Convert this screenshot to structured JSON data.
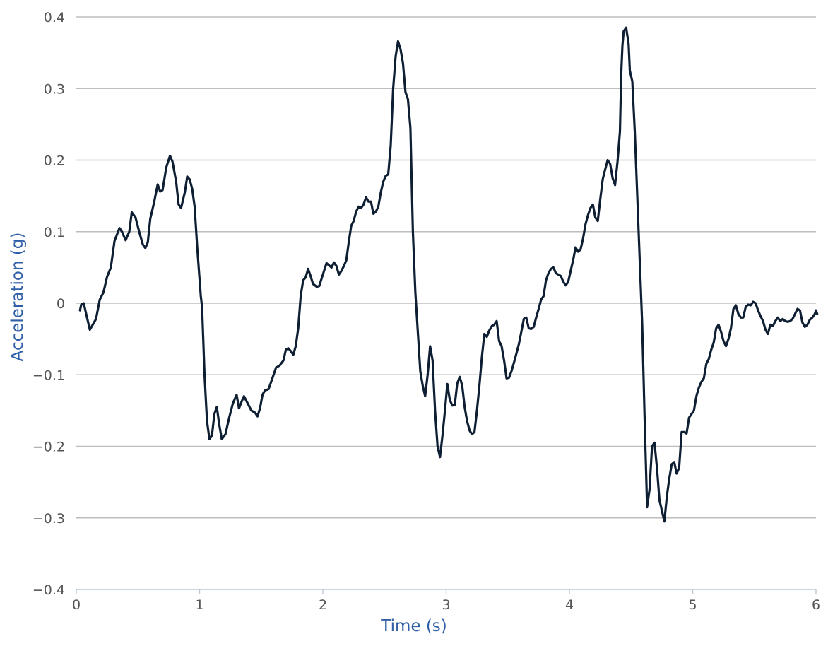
{
  "chart_data": {
    "type": "line",
    "title": "",
    "xlabel": "Time (s)",
    "ylabel": "Acceleration (g)",
    "xlim": [
      0,
      6
    ],
    "ylim": [
      -0.4,
      0.4
    ],
    "x_ticks": [
      0,
      1,
      2,
      3,
      4,
      5,
      6
    ],
    "x_tick_labels": [
      "0",
      "1",
      "2",
      "3",
      "4",
      "5",
      "6"
    ],
    "y_ticks": [
      0.4,
      0.3,
      0.2,
      0.1,
      0,
      -0.1,
      -0.2,
      -0.3,
      -0.4
    ],
    "y_tick_labels": [
      "0.4",
      "0.3",
      "0.2",
      "0.1",
      "0",
      "−0.1",
      "−0.2",
      "−0.3",
      "−0.4"
    ],
    "grid": "horizontal",
    "legend": "none",
    "colors": {
      "line": "#0f1f33",
      "grid": "#bdbdbd",
      "axis": "#b8c7d8",
      "axis_title": "#2f5fa6",
      "tick_label": "#555555"
    },
    "series": [
      {
        "points": [
          [
            0.03,
            -0.01
          ],
          [
            0.04,
            -0.002
          ],
          [
            0.06,
            0
          ],
          [
            0.08,
            -0.015
          ],
          [
            0.11,
            -0.037
          ],
          [
            0.14,
            -0.028
          ],
          [
            0.16,
            -0.022
          ],
          [
            0.19,
            0.005
          ],
          [
            0.22,
            0.015
          ],
          [
            0.25,
            0.037
          ],
          [
            0.28,
            0.05
          ],
          [
            0.31,
            0.087
          ],
          [
            0.35,
            0.105
          ],
          [
            0.37,
            0.1
          ],
          [
            0.4,
            0.088
          ],
          [
            0.43,
            0.1
          ],
          [
            0.45,
            0.127
          ],
          [
            0.48,
            0.12
          ],
          [
            0.51,
            0.1
          ],
          [
            0.54,
            0.082
          ],
          [
            0.56,
            0.077
          ],
          [
            0.58,
            0.085
          ],
          [
            0.6,
            0.118
          ],
          [
            0.63,
            0.14
          ],
          [
            0.66,
            0.166
          ],
          [
            0.68,
            0.156
          ],
          [
            0.7,
            0.158
          ],
          [
            0.73,
            0.19
          ],
          [
            0.76,
            0.206
          ],
          [
            0.78,
            0.198
          ],
          [
            0.81,
            0.17
          ],
          [
            0.83,
            0.138
          ],
          [
            0.85,
            0.133
          ],
          [
            0.88,
            0.155
          ],
          [
            0.9,
            0.177
          ],
          [
            0.92,
            0.173
          ],
          [
            0.94,
            0.16
          ],
          [
            0.96,
            0.135
          ],
          [
            0.98,
            0.08
          ],
          [
            1.01,
            0.01
          ],
          [
            1.02,
            -0.005
          ],
          [
            1.04,
            -0.1
          ],
          [
            1.06,
            -0.165
          ],
          [
            1.08,
            -0.19
          ],
          [
            1.1,
            -0.185
          ],
          [
            1.12,
            -0.155
          ],
          [
            1.14,
            -0.145
          ],
          [
            1.16,
            -0.17
          ],
          [
            1.18,
            -0.19
          ],
          [
            1.21,
            -0.183
          ],
          [
            1.24,
            -0.16
          ],
          [
            1.27,
            -0.14
          ],
          [
            1.3,
            -0.128
          ],
          [
            1.32,
            -0.147
          ],
          [
            1.34,
            -0.138
          ],
          [
            1.36,
            -0.13
          ],
          [
            1.39,
            -0.14
          ],
          [
            1.42,
            -0.15
          ],
          [
            1.45,
            -0.153
          ],
          [
            1.47,
            -0.158
          ],
          [
            1.49,
            -0.147
          ],
          [
            1.51,
            -0.128
          ],
          [
            1.53,
            -0.122
          ],
          [
            1.56,
            -0.12
          ],
          [
            1.59,
            -0.105
          ],
          [
            1.62,
            -0.09
          ],
          [
            1.65,
            -0.087
          ],
          [
            1.68,
            -0.08
          ],
          [
            1.7,
            -0.065
          ],
          [
            1.72,
            -0.063
          ],
          [
            1.74,
            -0.067
          ],
          [
            1.76,
            -0.072
          ],
          [
            1.78,
            -0.06
          ],
          [
            1.8,
            -0.035
          ],
          [
            1.82,
            0.01
          ],
          [
            1.84,
            0.032
          ],
          [
            1.86,
            0.036
          ],
          [
            1.88,
            0.048
          ],
          [
            1.9,
            0.038
          ],
          [
            1.92,
            0.027
          ],
          [
            1.95,
            0.023
          ],
          [
            1.97,
            0.024
          ],
          [
            2,
            0.04
          ],
          [
            2.03,
            0.056
          ],
          [
            2.05,
            0.053
          ],
          [
            2.07,
            0.05
          ],
          [
            2.09,
            0.057
          ],
          [
            2.11,
            0.052
          ],
          [
            2.13,
            0.04
          ],
          [
            2.15,
            0.045
          ],
          [
            2.17,
            0.052
          ],
          [
            2.19,
            0.06
          ],
          [
            2.21,
            0.085
          ],
          [
            2.23,
            0.108
          ],
          [
            2.25,
            0.115
          ],
          [
            2.27,
            0.128
          ],
          [
            2.29,
            0.135
          ],
          [
            2.31,
            0.133
          ],
          [
            2.33,
            0.138
          ],
          [
            2.35,
            0.148
          ],
          [
            2.37,
            0.142
          ],
          [
            2.39,
            0.142
          ],
          [
            2.41,
            0.125
          ],
          [
            2.43,
            0.128
          ],
          [
            2.45,
            0.135
          ],
          [
            2.47,
            0.155
          ],
          [
            2.49,
            0.17
          ],
          [
            2.51,
            0.178
          ],
          [
            2.53,
            0.18
          ],
          [
            2.55,
            0.22
          ],
          [
            2.57,
            0.3
          ],
          [
            2.59,
            0.345
          ],
          [
            2.61,
            0.366
          ],
          [
            2.63,
            0.355
          ],
          [
            2.65,
            0.335
          ],
          [
            2.67,
            0.295
          ],
          [
            2.69,
            0.285
          ],
          [
            2.71,
            0.245
          ],
          [
            2.73,
            0.1
          ],
          [
            2.75,
            0.015
          ],
          [
            2.77,
            -0.04
          ],
          [
            2.79,
            -0.095
          ],
          [
            2.81,
            -0.115
          ],
          [
            2.83,
            -0.13
          ],
          [
            2.85,
            -0.1
          ],
          [
            2.87,
            -0.06
          ],
          [
            2.89,
            -0.08
          ],
          [
            2.91,
            -0.15
          ],
          [
            2.93,
            -0.2
          ],
          [
            2.95,
            -0.215
          ],
          [
            2.97,
            -0.185
          ],
          [
            2.99,
            -0.15
          ],
          [
            3.01,
            -0.113
          ],
          [
            3.03,
            -0.135
          ],
          [
            3.05,
            -0.143
          ],
          [
            3.07,
            -0.142
          ],
          [
            3.09,
            -0.112
          ],
          [
            3.11,
            -0.103
          ],
          [
            3.13,
            -0.115
          ],
          [
            3.15,
            -0.145
          ],
          [
            3.17,
            -0.165
          ],
          [
            3.19,
            -0.178
          ],
          [
            3.21,
            -0.183
          ],
          [
            3.23,
            -0.18
          ],
          [
            3.25,
            -0.15
          ],
          [
            3.27,
            -0.115
          ],
          [
            3.29,
            -0.075
          ],
          [
            3.31,
            -0.043
          ],
          [
            3.33,
            -0.047
          ],
          [
            3.35,
            -0.038
          ],
          [
            3.37,
            -0.032
          ],
          [
            3.39,
            -0.03
          ],
          [
            3.41,
            -0.025
          ],
          [
            3.43,
            -0.053
          ],
          [
            3.45,
            -0.06
          ],
          [
            3.47,
            -0.08
          ],
          [
            3.49,
            -0.105
          ],
          [
            3.51,
            -0.104
          ],
          [
            3.53,
            -0.095
          ],
          [
            3.55,
            -0.083
          ],
          [
            3.57,
            -0.07
          ],
          [
            3.59,
            -0.057
          ],
          [
            3.61,
            -0.04
          ],
          [
            3.63,
            -0.022
          ],
          [
            3.65,
            -0.02
          ],
          [
            3.67,
            -0.035
          ],
          [
            3.69,
            -0.036
          ],
          [
            3.71,
            -0.033
          ],
          [
            3.73,
            -0.02
          ],
          [
            3.75,
            -0.008
          ],
          [
            3.77,
            0.005
          ],
          [
            3.79,
            0.01
          ],
          [
            3.81,
            0.032
          ],
          [
            3.83,
            0.042
          ],
          [
            3.85,
            0.048
          ],
          [
            3.87,
            0.05
          ],
          [
            3.89,
            0.042
          ],
          [
            3.91,
            0.04
          ],
          [
            3.93,
            0.038
          ],
          [
            3.95,
            0.03
          ],
          [
            3.97,
            0.025
          ],
          [
            3.99,
            0.03
          ],
          [
            4.01,
            0.045
          ],
          [
            4.03,
            0.06
          ],
          [
            4.05,
            0.078
          ],
          [
            4.07,
            0.072
          ],
          [
            4.09,
            0.075
          ],
          [
            4.11,
            0.09
          ],
          [
            4.13,
            0.11
          ],
          [
            4.15,
            0.123
          ],
          [
            4.17,
            0.133
          ],
          [
            4.19,
            0.138
          ],
          [
            4.21,
            0.12
          ],
          [
            4.23,
            0.115
          ],
          [
            4.25,
            0.145
          ],
          [
            4.27,
            0.173
          ],
          [
            4.29,
            0.187
          ],
          [
            4.31,
            0.2
          ],
          [
            4.33,
            0.195
          ],
          [
            4.35,
            0.175
          ],
          [
            4.37,
            0.165
          ],
          [
            4.39,
            0.198
          ],
          [
            4.41,
            0.24
          ],
          [
            4.42,
            0.32
          ],
          [
            4.43,
            0.36
          ],
          [
            4.44,
            0.38
          ],
          [
            4.46,
            0.385
          ],
          [
            4.48,
            0.362
          ],
          [
            4.49,
            0.325
          ],
          [
            4.51,
            0.31
          ],
          [
            4.53,
            0.24
          ],
          [
            4.55,
            0.15
          ],
          [
            4.57,
            0.06
          ],
          [
            4.59,
            -0.03
          ],
          [
            4.61,
            -0.16
          ],
          [
            4.63,
            -0.285
          ],
          [
            4.65,
            -0.26
          ],
          [
            4.67,
            -0.2
          ],
          [
            4.69,
            -0.195
          ],
          [
            4.71,
            -0.23
          ],
          [
            4.73,
            -0.275
          ],
          [
            4.75,
            -0.29
          ],
          [
            4.77,
            -0.305
          ],
          [
            4.79,
            -0.27
          ],
          [
            4.81,
            -0.245
          ],
          [
            4.83,
            -0.225
          ],
          [
            4.85,
            -0.222
          ],
          [
            4.87,
            -0.238
          ],
          [
            4.89,
            -0.23
          ],
          [
            4.91,
            -0.18
          ],
          [
            4.93,
            -0.18
          ],
          [
            4.95,
            -0.182
          ],
          [
            4.97,
            -0.16
          ],
          [
            4.99,
            -0.155
          ],
          [
            5.01,
            -0.15
          ],
          [
            5.03,
            -0.13
          ],
          [
            5.05,
            -0.118
          ],
          [
            5.07,
            -0.11
          ],
          [
            5.09,
            -0.105
          ],
          [
            5.11,
            -0.085
          ],
          [
            5.13,
            -0.078
          ],
          [
            5.15,
            -0.065
          ],
          [
            5.17,
            -0.055
          ],
          [
            5.19,
            -0.035
          ],
          [
            5.21,
            -0.03
          ],
          [
            5.23,
            -0.04
          ],
          [
            5.25,
            -0.053
          ],
          [
            5.27,
            -0.06
          ],
          [
            5.29,
            -0.05
          ],
          [
            5.31,
            -0.035
          ],
          [
            5.33,
            -0.008
          ],
          [
            5.35,
            -0.003
          ],
          [
            5.37,
            -0.015
          ],
          [
            5.39,
            -0.02
          ],
          [
            5.41,
            -0.02
          ],
          [
            5.43,
            -0.005
          ],
          [
            5.45,
            -0.002
          ],
          [
            5.47,
            -0.003
          ],
          [
            5.49,
            0.002
          ],
          [
            5.51,
            0
          ],
          [
            5.53,
            -0.01
          ],
          [
            5.55,
            -0.018
          ],
          [
            5.57,
            -0.025
          ],
          [
            5.59,
            -0.037
          ],
          [
            5.61,
            -0.043
          ],
          [
            5.63,
            -0.03
          ],
          [
            5.65,
            -0.032
          ],
          [
            5.67,
            -0.025
          ],
          [
            5.69,
            -0.02
          ],
          [
            5.71,
            -0.025
          ],
          [
            5.73,
            -0.022
          ],
          [
            5.75,
            -0.025
          ],
          [
            5.77,
            -0.026
          ],
          [
            5.79,
            -0.025
          ],
          [
            5.81,
            -0.022
          ],
          [
            5.83,
            -0.015
          ],
          [
            5.85,
            -0.008
          ],
          [
            5.87,
            -0.01
          ],
          [
            5.89,
            -0.027
          ],
          [
            5.91,
            -0.033
          ],
          [
            5.93,
            -0.03
          ],
          [
            5.95,
            -0.023
          ],
          [
            5.97,
            -0.02
          ],
          [
            5.99,
            -0.015
          ],
          [
            6,
            -0.01
          ],
          [
            6.01,
            -0.015
          ]
        ]
      }
    ]
  }
}
